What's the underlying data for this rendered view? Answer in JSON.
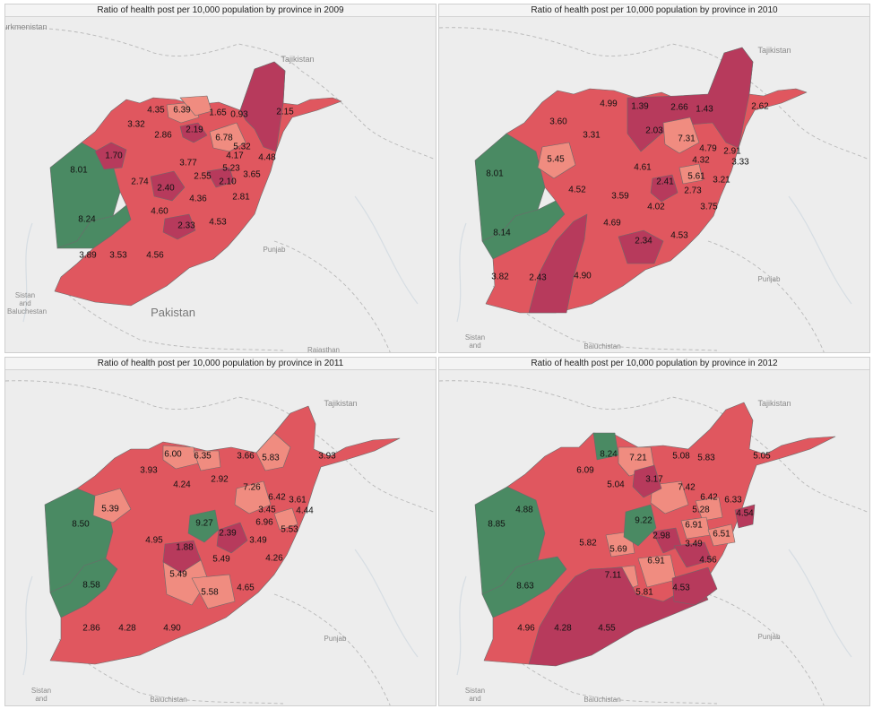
{
  "colors": {
    "background": "#ededed",
    "green": "#4a8a63",
    "dark_red": "#b73a5c",
    "red": "#e0575f",
    "light_red": "#f08c80",
    "province_border": "#6b6b6b"
  },
  "panels": [
    {
      "title": "Ratio of health post per 10,000 population by province in 2009",
      "places": [
        "urkmenistan",
        "Tajikistan",
        "Punjab",
        "Sistan",
        "and",
        "Baluchestan",
        "Pakistan",
        "Rajasthan"
      ],
      "values": [
        "1.65",
        "0.93",
        "2.15",
        "4.35",
        "6.39",
        "3.32",
        "2.19",
        "6.78",
        "2.86",
        "5.32",
        "1.70",
        "4.17",
        "4.48",
        "3.77",
        "5.23",
        "8.01",
        "2.55",
        "3.65",
        "2.74",
        "2.10",
        "2.40",
        "4.36",
        "2.81",
        "4.60",
        "8.24",
        "2.33",
        "4.53",
        "3.89",
        "3.53",
        "4.56"
      ]
    },
    {
      "title": "Ratio of health post per 10,000 population by province in 2010",
      "places": [
        "Tajikistan",
        "Punjab",
        "Sistan",
        "and",
        "Baluchistan"
      ],
      "values": [
        "4.99",
        "1.39",
        "2.66",
        "1.43",
        "2.62",
        "3.60",
        "2.03",
        "3.31",
        "7.31",
        "4.79",
        "2.91",
        "4.32",
        "3.33",
        "5.45",
        "4.61",
        "5.61",
        "3.21",
        "8.01",
        "2.41",
        "2.73",
        "4.52",
        "3.59",
        "4.02",
        "3.75",
        "4.69",
        "8.14",
        "2.34",
        "4.53",
        "3.82",
        "2.43",
        "4.90"
      ]
    },
    {
      "title": "Ratio of health post per 10,000 population by province in 2011",
      "places": [
        "Tajikistan",
        "Punjab",
        "Sistan",
        "and",
        "Baluchistan"
      ],
      "values": [
        "6.00",
        "6.35",
        "3.66",
        "5.83",
        "3.93",
        "3.93",
        "4.24",
        "2.92",
        "7.26",
        "6.42",
        "3.61",
        "3.45",
        "4.44",
        "5.39",
        "9.27",
        "8.50",
        "6.96",
        "5.53",
        "2.39",
        "3.49",
        "4.95",
        "1.88",
        "5.49",
        "4.26",
        "5.49",
        "8.58",
        "5.58",
        "4.65",
        "2.86",
        "4.28",
        "4.90"
      ]
    },
    {
      "title": "Ratio of health post per 10,000 population by province in 2012",
      "places": [
        "Tajikistan",
        "Punjab",
        "Sistan",
        "and",
        "Baluchistan"
      ],
      "values": [
        "8.24",
        "7.21",
        "5.08",
        "5.83",
        "5.05",
        "6.09",
        "3.17",
        "5.04",
        "7.42",
        "6.42",
        "6.33",
        "4.88",
        "5.28",
        "4.54",
        "9.22",
        "8.85",
        "6.91",
        "6.51",
        "2.98",
        "3.49",
        "5.82",
        "5.69",
        "4.56",
        "6.91",
        "7.11",
        "4.53",
        "8.63",
        "5.81",
        "4.96",
        "4.28",
        "4.55"
      ]
    }
  ]
}
